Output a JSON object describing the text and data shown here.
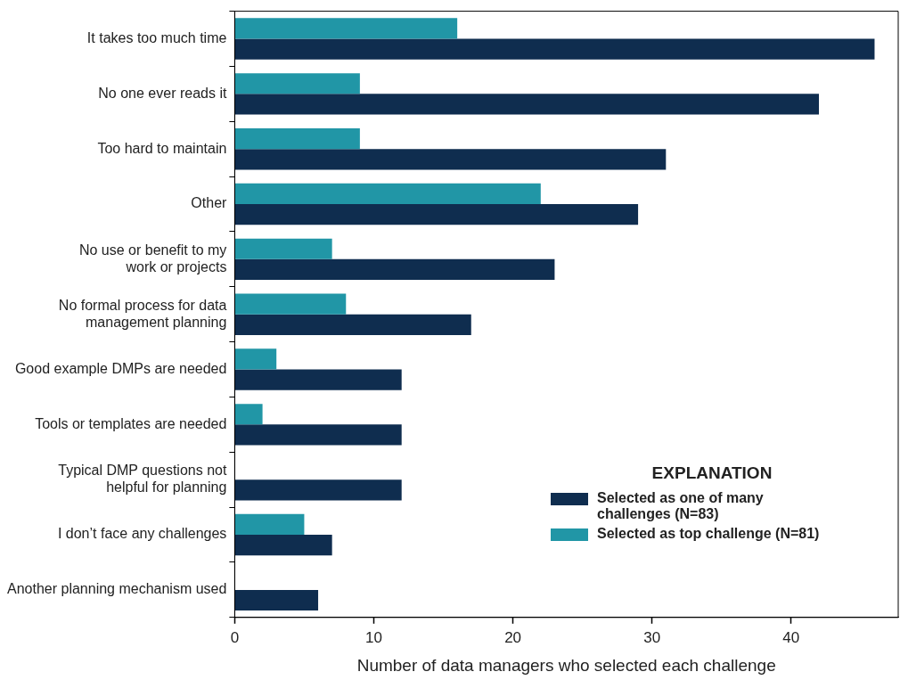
{
  "chart_data": {
    "type": "bar",
    "orientation": "horizontal",
    "xlabel": "Number of data managers who selected each challenge",
    "categories": [
      "It takes too much time",
      "No one ever reads it",
      "Too hard to maintain",
      "Other",
      "No use or benefit to my work or projects",
      "No formal process for data management planning",
      "Good example DMPs are needed",
      "Tools or templates are needed",
      "Typical DMP questions not helpful for planning",
      "I don’t face any challenges",
      "Another planning mechanism used"
    ],
    "series": [
      {
        "name": "Selected as top challenge (N=81)",
        "color": "#2196a6",
        "values": [
          16,
          9,
          9,
          22,
          7,
          8,
          3,
          2,
          0,
          5,
          0
        ]
      },
      {
        "name": "Selected as one of many challenges (N=83)",
        "color": "#0f2d4f",
        "values": [
          46,
          42,
          31,
          29,
          23,
          17,
          12,
          12,
          12,
          7,
          6
        ]
      }
    ],
    "xlim": [
      0,
      47.7
    ],
    "xticks": [
      0,
      10,
      20,
      30,
      40
    ],
    "grid": false,
    "legend": "bottom right",
    "legend_title": "EXPLANATION"
  }
}
